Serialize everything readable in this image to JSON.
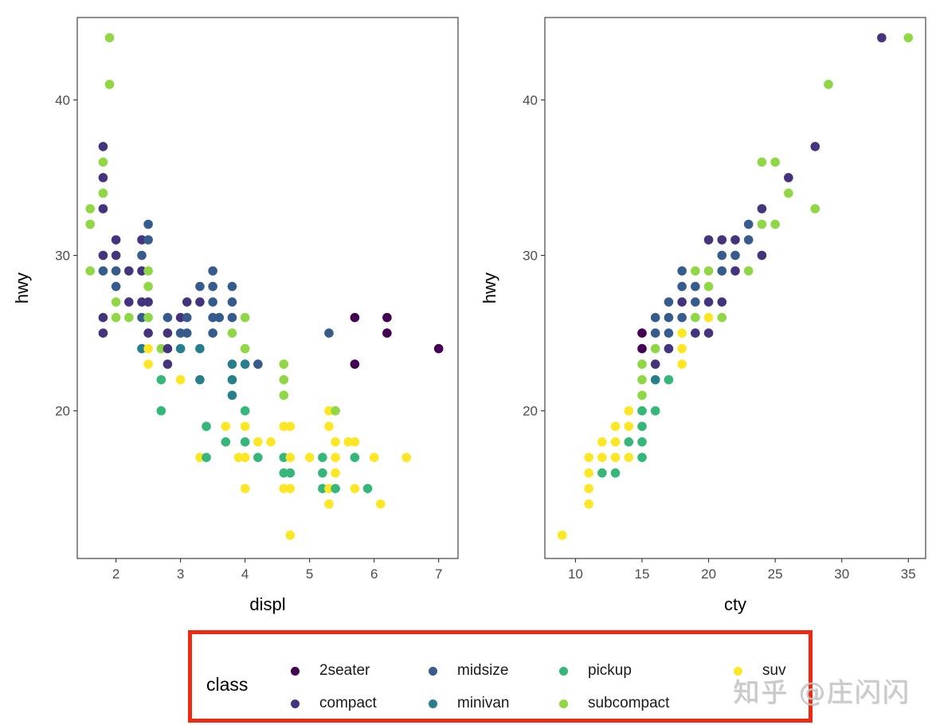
{
  "colors": {
    "2seater": "#440154",
    "compact": "#46337e",
    "midsize": "#365c8d",
    "minivan": "#277f8e",
    "pickup": "#35b779",
    "subcompact": "#8fd744",
    "suv": "#fde725",
    "legend_border": "#ee2a12"
  },
  "chart_data": [
    {
      "type": "scatter",
      "title": "",
      "xlabel": "displ",
      "ylabel": "hwy",
      "xlim": [
        1.4,
        7.3
      ],
      "ylim": [
        10.5,
        45.3
      ],
      "xticks": [
        "2",
        "3",
        "4",
        "5",
        "6",
        "7"
      ],
      "yticks": [
        "20",
        "30",
        "40"
      ],
      "grid": false,
      "points": [
        {
          "x": 1.9,
          "y": 44,
          "class": "subcompact"
        },
        {
          "x": 1.9,
          "y": 41,
          "class": "subcompact"
        },
        {
          "x": 1.8,
          "y": 37,
          "class": "compact"
        },
        {
          "x": 1.8,
          "y": 36,
          "class": "subcompact"
        },
        {
          "x": 1.8,
          "y": 35,
          "class": "compact"
        },
        {
          "x": 1.8,
          "y": 34,
          "class": "subcompact"
        },
        {
          "x": 1.6,
          "y": 33,
          "class": "subcompact"
        },
        {
          "x": 1.8,
          "y": 33,
          "class": "compact"
        },
        {
          "x": 1.6,
          "y": 32,
          "class": "subcompact"
        },
        {
          "x": 2.5,
          "y": 32,
          "class": "midsize"
        },
        {
          "x": 2.0,
          "y": 31,
          "class": "compact"
        },
        {
          "x": 2.4,
          "y": 31,
          "class": "compact"
        },
        {
          "x": 2.5,
          "y": 31,
          "class": "midsize"
        },
        {
          "x": 1.8,
          "y": 30,
          "class": "compact"
        },
        {
          "x": 2.0,
          "y": 30,
          "class": "compact"
        },
        {
          "x": 2.4,
          "y": 30,
          "class": "midsize"
        },
        {
          "x": 1.6,
          "y": 29,
          "class": "subcompact"
        },
        {
          "x": 1.8,
          "y": 29,
          "class": "midsize"
        },
        {
          "x": 2.0,
          "y": 29,
          "class": "midsize"
        },
        {
          "x": 2.2,
          "y": 29,
          "class": "compact"
        },
        {
          "x": 2.4,
          "y": 29,
          "class": "compact"
        },
        {
          "x": 2.5,
          "y": 29,
          "class": "subcompact"
        },
        {
          "x": 2.0,
          "y": 28,
          "class": "midsize"
        },
        {
          "x": 2.5,
          "y": 28,
          "class": "subcompact"
        },
        {
          "x": 2.0,
          "y": 27,
          "class": "subcompact"
        },
        {
          "x": 2.2,
          "y": 27,
          "class": "compact"
        },
        {
          "x": 2.4,
          "y": 27,
          "class": "compact"
        },
        {
          "x": 2.5,
          "y": 27,
          "class": "compact"
        },
        {
          "x": 1.8,
          "y": 26,
          "class": "compact"
        },
        {
          "x": 2.0,
          "y": 26,
          "class": "subcompact"
        },
        {
          "x": 2.2,
          "y": 26,
          "class": "subcompact"
        },
        {
          "x": 2.4,
          "y": 26,
          "class": "midsize"
        },
        {
          "x": 2.5,
          "y": 26,
          "class": "subcompact"
        },
        {
          "x": 1.8,
          "y": 25,
          "class": "compact"
        },
        {
          "x": 2.5,
          "y": 25,
          "class": "compact"
        },
        {
          "x": 2.4,
          "y": 24,
          "class": "minivan"
        },
        {
          "x": 2.5,
          "y": 24,
          "class": "suv"
        },
        {
          "x": 2.7,
          "y": 24,
          "class": "subcompact"
        },
        {
          "x": 2.8,
          "y": 24,
          "class": "compact"
        },
        {
          "x": 3.0,
          "y": 24,
          "class": "minivan"
        },
        {
          "x": 3.3,
          "y": 24,
          "class": "minivan"
        },
        {
          "x": 2.5,
          "y": 23,
          "class": "suv"
        },
        {
          "x": 2.8,
          "y": 23,
          "class": "compact"
        },
        {
          "x": 2.7,
          "y": 22,
          "class": "pickup"
        },
        {
          "x": 3.0,
          "y": 22,
          "class": "suv"
        },
        {
          "x": 3.3,
          "y": 22,
          "class": "minivan"
        },
        {
          "x": 2.7,
          "y": 20,
          "class": "pickup"
        },
        {
          "x": 2.8,
          "y": 26,
          "class": "midsize"
        },
        {
          "x": 2.8,
          "y": 25,
          "class": "compact"
        },
        {
          "x": 3.0,
          "y": 25,
          "class": "midsize"
        },
        {
          "x": 3.0,
          "y": 26,
          "class": "compact"
        },
        {
          "x": 3.1,
          "y": 26,
          "class": "midsize"
        },
        {
          "x": 3.1,
          "y": 25,
          "class": "midsize"
        },
        {
          "x": 3.1,
          "y": 27,
          "class": "compact"
        },
        {
          "x": 3.3,
          "y": 27,
          "class": "compact"
        },
        {
          "x": 3.3,
          "y": 28,
          "class": "midsize"
        },
        {
          "x": 3.5,
          "y": 28,
          "class": "midsize"
        },
        {
          "x": 3.5,
          "y": 29,
          "class": "midsize"
        },
        {
          "x": 3.5,
          "y": 27,
          "class": "midsize"
        },
        {
          "x": 3.5,
          "y": 26,
          "class": "midsize"
        },
        {
          "x": 3.5,
          "y": 25,
          "class": "midsize"
        },
        {
          "x": 3.6,
          "y": 26,
          "class": "midsize"
        },
        {
          "x": 3.8,
          "y": 28,
          "class": "midsize"
        },
        {
          "x": 3.8,
          "y": 27,
          "class": "midsize"
        },
        {
          "x": 3.8,
          "y": 26,
          "class": "midsize"
        },
        {
          "x": 3.8,
          "y": 25,
          "class": "subcompact"
        },
        {
          "x": 4.0,
          "y": 26,
          "class": "subcompact"
        },
        {
          "x": 4.0,
          "y": 24,
          "class": "subcompact"
        },
        {
          "x": 3.8,
          "y": 23,
          "class": "minivan"
        },
        {
          "x": 4.0,
          "y": 23,
          "class": "minivan"
        },
        {
          "x": 4.2,
          "y": 23,
          "class": "midsize"
        },
        {
          "x": 3.8,
          "y": 22,
          "class": "minivan"
        },
        {
          "x": 3.8,
          "y": 21,
          "class": "minivan"
        },
        {
          "x": 4.0,
          "y": 20,
          "class": "pickup"
        },
        {
          "x": 3.4,
          "y": 19,
          "class": "pickup"
        },
        {
          "x": 3.7,
          "y": 19,
          "class": "suv"
        },
        {
          "x": 4.0,
          "y": 19,
          "class": "suv"
        },
        {
          "x": 3.7,
          "y": 18,
          "class": "pickup"
        },
        {
          "x": 4.0,
          "y": 18,
          "class": "pickup"
        },
        {
          "x": 4.2,
          "y": 18,
          "class": "suv"
        },
        {
          "x": 4.4,
          "y": 18,
          "class": "suv"
        },
        {
          "x": 3.3,
          "y": 17,
          "class": "suv"
        },
        {
          "x": 3.4,
          "y": 17,
          "class": "pickup"
        },
        {
          "x": 3.9,
          "y": 17,
          "class": "suv"
        },
        {
          "x": 4.0,
          "y": 17,
          "class": "suv"
        },
        {
          "x": 4.0,
          "y": 17,
          "class": "suv"
        },
        {
          "x": 4.2,
          "y": 17,
          "class": "pickup"
        },
        {
          "x": 4.0,
          "y": 15,
          "class": "suv"
        },
        {
          "x": 4.6,
          "y": 23,
          "class": "subcompact"
        },
        {
          "x": 4.6,
          "y": 22,
          "class": "subcompact"
        },
        {
          "x": 4.6,
          "y": 21,
          "class": "subcompact"
        },
        {
          "x": 4.6,
          "y": 19,
          "class": "suv"
        },
        {
          "x": 4.7,
          "y": 19,
          "class": "suv"
        },
        {
          "x": 4.6,
          "y": 17,
          "class": "pickup"
        },
        {
          "x": 4.7,
          "y": 17,
          "class": "suv"
        },
        {
          "x": 4.6,
          "y": 16,
          "class": "pickup"
        },
        {
          "x": 4.7,
          "y": 16,
          "class": "pickup"
        },
        {
          "x": 4.6,
          "y": 15,
          "class": "suv"
        },
        {
          "x": 4.7,
          "y": 15,
          "class": "suv"
        },
        {
          "x": 4.7,
          "y": 12,
          "class": "suv"
        },
        {
          "x": 5.0,
          "y": 17,
          "class": "suv"
        },
        {
          "x": 5.2,
          "y": 17,
          "class": "pickup"
        },
        {
          "x": 5.2,
          "y": 16,
          "class": "pickup"
        },
        {
          "x": 5.2,
          "y": 15,
          "class": "pickup"
        },
        {
          "x": 5.3,
          "y": 25,
          "class": "midsize"
        },
        {
          "x": 5.3,
          "y": 20,
          "class": "suv"
        },
        {
          "x": 5.4,
          "y": 20,
          "class": "subcompact"
        },
        {
          "x": 5.3,
          "y": 19,
          "class": "suv"
        },
        {
          "x": 5.4,
          "y": 18,
          "class": "suv"
        },
        {
          "x": 5.4,
          "y": 17,
          "class": "suv"
        },
        {
          "x": 5.4,
          "y": 16,
          "class": "suv"
        },
        {
          "x": 5.3,
          "y": 15,
          "class": "suv"
        },
        {
          "x": 5.4,
          "y": 15,
          "class": "pickup"
        },
        {
          "x": 5.3,
          "y": 14,
          "class": "suv"
        },
        {
          "x": 5.6,
          "y": 18,
          "class": "suv"
        },
        {
          "x": 5.7,
          "y": 18,
          "class": "suv"
        },
        {
          "x": 5.7,
          "y": 17,
          "class": "pickup"
        },
        {
          "x": 5.7,
          "y": 15,
          "class": "suv"
        },
        {
          "x": 5.9,
          "y": 15,
          "class": "pickup"
        },
        {
          "x": 6.0,
          "y": 17,
          "class": "suv"
        },
        {
          "x": 6.1,
          "y": 14,
          "class": "suv"
        },
        {
          "x": 6.5,
          "y": 17,
          "class": "suv"
        },
        {
          "x": 5.7,
          "y": 26,
          "class": "2seater"
        },
        {
          "x": 6.2,
          "y": 26,
          "class": "2seater"
        },
        {
          "x": 6.2,
          "y": 25,
          "class": "2seater"
        },
        {
          "x": 5.7,
          "y": 23,
          "class": "2seater"
        },
        {
          "x": 7.0,
          "y": 24,
          "class": "2seater"
        }
      ]
    },
    {
      "type": "scatter",
      "title": "",
      "xlabel": "cty",
      "ylabel": "hwy",
      "xlim": [
        7.7,
        36.3
      ],
      "ylim": [
        10.5,
        45.3
      ],
      "xticks": [
        "10",
        "15",
        "20",
        "25",
        "30",
        "35"
      ],
      "yticks": [
        "20",
        "30",
        "40"
      ],
      "grid": false,
      "points": [
        {
          "x": 33,
          "y": 44,
          "class": "compact"
        },
        {
          "x": 35,
          "y": 44,
          "class": "subcompact"
        },
        {
          "x": 29,
          "y": 41,
          "class": "subcompact"
        },
        {
          "x": 28,
          "y": 37,
          "class": "compact"
        },
        {
          "x": 24,
          "y": 36,
          "class": "subcompact"
        },
        {
          "x": 25,
          "y": 36,
          "class": "subcompact"
        },
        {
          "x": 26,
          "y": 35,
          "class": "compact"
        },
        {
          "x": 26,
          "y": 34,
          "class": "subcompact"
        },
        {
          "x": 24,
          "y": 33,
          "class": "compact"
        },
        {
          "x": 28,
          "y": 33,
          "class": "subcompact"
        },
        {
          "x": 23,
          "y": 32,
          "class": "midsize"
        },
        {
          "x": 24,
          "y": 32,
          "class": "subcompact"
        },
        {
          "x": 25,
          "y": 32,
          "class": "subcompact"
        },
        {
          "x": 20,
          "y": 31,
          "class": "compact"
        },
        {
          "x": 21,
          "y": 31,
          "class": "compact"
        },
        {
          "x": 22,
          "y": 31,
          "class": "compact"
        },
        {
          "x": 23,
          "y": 31,
          "class": "midsize"
        },
        {
          "x": 21,
          "y": 30,
          "class": "midsize"
        },
        {
          "x": 22,
          "y": 30,
          "class": "midsize"
        },
        {
          "x": 24,
          "y": 30,
          "class": "compact"
        },
        {
          "x": 18,
          "y": 29,
          "class": "midsize"
        },
        {
          "x": 19,
          "y": 29,
          "class": "subcompact"
        },
        {
          "x": 20,
          "y": 29,
          "class": "subcompact"
        },
        {
          "x": 21,
          "y": 29,
          "class": "midsize"
        },
        {
          "x": 22,
          "y": 29,
          "class": "compact"
        },
        {
          "x": 23,
          "y": 29,
          "class": "subcompact"
        },
        {
          "x": 18,
          "y": 28,
          "class": "midsize"
        },
        {
          "x": 19,
          "y": 28,
          "class": "midsize"
        },
        {
          "x": 20,
          "y": 28,
          "class": "subcompact"
        },
        {
          "x": 17,
          "y": 27,
          "class": "midsize"
        },
        {
          "x": 18,
          "y": 27,
          "class": "compact"
        },
        {
          "x": 19,
          "y": 27,
          "class": "midsize"
        },
        {
          "x": 20,
          "y": 27,
          "class": "compact"
        },
        {
          "x": 21,
          "y": 27,
          "class": "compact"
        },
        {
          "x": 16,
          "y": 26,
          "class": "midsize"
        },
        {
          "x": 17,
          "y": 26,
          "class": "midsize"
        },
        {
          "x": 18,
          "y": 26,
          "class": "midsize"
        },
        {
          "x": 19,
          "y": 26,
          "class": "subcompact"
        },
        {
          "x": 20,
          "y": 26,
          "class": "suv"
        },
        {
          "x": 21,
          "y": 26,
          "class": "subcompact"
        },
        {
          "x": 15,
          "y": 25,
          "class": "2seater"
        },
        {
          "x": 16,
          "y": 25,
          "class": "midsize"
        },
        {
          "x": 17,
          "y": 25,
          "class": "midsize"
        },
        {
          "x": 18,
          "y": 25,
          "class": "suv"
        },
        {
          "x": 19,
          "y": 25,
          "class": "compact"
        },
        {
          "x": 20,
          "y": 25,
          "class": "compact"
        },
        {
          "x": 15,
          "y": 24,
          "class": "2seater"
        },
        {
          "x": 16,
          "y": 24,
          "class": "subcompact"
        },
        {
          "x": 17,
          "y": 24,
          "class": "compact"
        },
        {
          "x": 18,
          "y": 24,
          "class": "suv"
        },
        {
          "x": 15,
          "y": 23,
          "class": "subcompact"
        },
        {
          "x": 16,
          "y": 23,
          "class": "compact"
        },
        {
          "x": 18,
          "y": 23,
          "class": "suv"
        },
        {
          "x": 15,
          "y": 22,
          "class": "subcompact"
        },
        {
          "x": 16,
          "y": 22,
          "class": "minivan"
        },
        {
          "x": 17,
          "y": 22,
          "class": "pickup"
        },
        {
          "x": 15,
          "y": 21,
          "class": "subcompact"
        },
        {
          "x": 14,
          "y": 20,
          "class": "suv"
        },
        {
          "x": 15,
          "y": 20,
          "class": "pickup"
        },
        {
          "x": 16,
          "y": 20,
          "class": "pickup"
        },
        {
          "x": 13,
          "y": 19,
          "class": "suv"
        },
        {
          "x": 14,
          "y": 19,
          "class": "suv"
        },
        {
          "x": 15,
          "y": 19,
          "class": "pickup"
        },
        {
          "x": 12,
          "y": 18,
          "class": "suv"
        },
        {
          "x": 13,
          "y": 18,
          "class": "suv"
        },
        {
          "x": 14,
          "y": 18,
          "class": "pickup"
        },
        {
          "x": 15,
          "y": 18,
          "class": "pickup"
        },
        {
          "x": 11,
          "y": 17,
          "class": "suv"
        },
        {
          "x": 12,
          "y": 17,
          "class": "suv"
        },
        {
          "x": 13,
          "y": 17,
          "class": "suv"
        },
        {
          "x": 14,
          "y": 17,
          "class": "suv"
        },
        {
          "x": 15,
          "y": 17,
          "class": "pickup"
        },
        {
          "x": 11,
          "y": 16,
          "class": "suv"
        },
        {
          "x": 12,
          "y": 16,
          "class": "pickup"
        },
        {
          "x": 13,
          "y": 16,
          "class": "pickup"
        },
        {
          "x": 11,
          "y": 15,
          "class": "suv"
        },
        {
          "x": 11,
          "y": 14,
          "class": "suv"
        },
        {
          "x": 9,
          "y": 12,
          "class": "suv"
        }
      ]
    }
  ],
  "legend": {
    "title": "class",
    "items": [
      {
        "label": "2seater",
        "key": "2seater"
      },
      {
        "label": "compact",
        "key": "compact"
      },
      {
        "label": "midsize",
        "key": "midsize"
      },
      {
        "label": "minivan",
        "key": "minivan"
      },
      {
        "label": "pickup",
        "key": "pickup"
      },
      {
        "label": "subcompact",
        "key": "subcompact"
      },
      {
        "label": "suv",
        "key": "suv"
      }
    ]
  },
  "watermark": "知乎 @庄闪闪"
}
